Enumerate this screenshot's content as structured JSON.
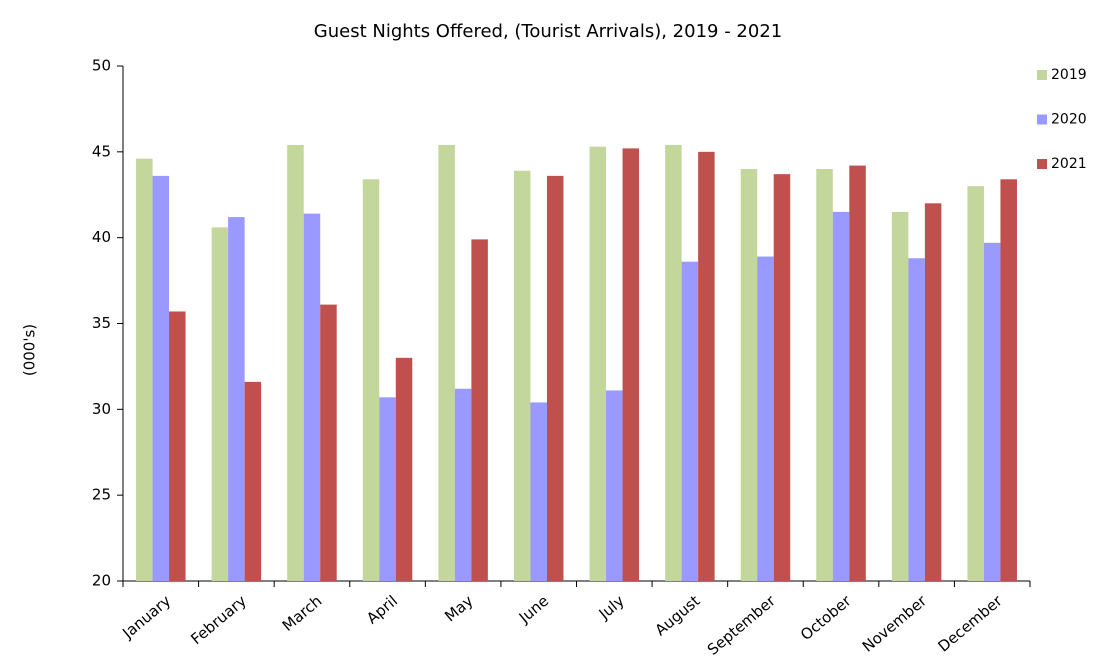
{
  "chart_data": {
    "type": "bar",
    "title": "Guest Nights Offered, (Tourist Arrivals), 2019 - 2021",
    "y_label": "(000's)",
    "categories": [
      "January",
      "February",
      "March",
      "April",
      "May",
      "June",
      "July",
      "August",
      "September",
      "October",
      "November",
      "December"
    ],
    "series": [
      {
        "name": "2019",
        "color": "#c3d69b",
        "values": [
          44.6,
          40.6,
          45.4,
          43.4,
          45.4,
          43.9,
          45.3,
          45.4,
          44.0,
          44.0,
          41.5,
          43.0
        ]
      },
      {
        "name": "2020",
        "color": "#9999ff",
        "values": [
          43.6,
          41.2,
          41.4,
          30.7,
          31.2,
          30.4,
          31.1,
          38.6,
          38.9,
          41.5,
          38.8,
          39.7
        ]
      },
      {
        "name": "2021",
        "color": "#c0504d",
        "values": [
          35.7,
          31.6,
          36.1,
          33.0,
          39.9,
          43.6,
          45.2,
          45.0,
          43.7,
          44.2,
          42.0,
          43.4
        ]
      }
    ],
    "ylim": [
      20,
      50
    ],
    "yticks": [
      20,
      25,
      30,
      35,
      40,
      45,
      50
    ],
    "grid": false,
    "legend": "right"
  }
}
